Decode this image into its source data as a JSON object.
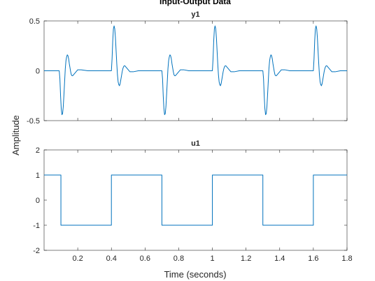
{
  "chart_data": {
    "type": "line",
    "title": "Input-Output Data",
    "xlabel": "Time (seconds)",
    "ylabel": "Amplitude",
    "line_color": "#0072BD",
    "axis_color": "#262626",
    "grid": false,
    "xlim": [
      0,
      1.8
    ],
    "xticks": [
      0.2,
      0.4,
      0.6,
      0.8,
      1,
      1.2,
      1.4,
      1.6,
      1.8
    ],
    "xtick_labels": [
      "0.2",
      "0.4",
      "0.6",
      "0.8",
      "1",
      "1.2",
      "1.4",
      "1.6",
      "1.8"
    ],
    "panels": [
      {
        "name": "y1",
        "title": "y1",
        "ylim": [
          -0.5,
          0.5
        ],
        "yticks": [
          -0.5,
          0,
          0.5
        ],
        "ytick_labels": [
          "-0.5",
          "0",
          "0.5"
        ],
        "series": [
          {
            "values_description_note": "",
            "x": [
              0.0,
              0.09,
              0.094,
              0.098,
              0.102,
              0.106,
              0.11,
              0.114,
              0.118,
              0.122,
              0.126,
              0.13,
              0.134,
              0.138,
              0.142,
              0.146,
              0.15,
              0.154,
              0.158,
              0.162,
              0.166,
              0.17,
              0.175,
              0.18,
              0.19,
              0.2,
              0.22,
              0.26,
              0.3,
              0.35,
              0.398,
              0.4,
              0.404,
              0.408,
              0.412,
              0.416,
              0.42,
              0.424,
              0.428,
              0.432,
              0.436,
              0.44,
              0.444,
              0.448,
              0.452,
              0.456,
              0.46,
              0.464,
              0.468,
              0.472,
              0.476,
              0.48,
              0.485,
              0.49,
              0.5,
              0.51,
              0.53,
              0.56,
              0.6,
              0.65,
              0.698,
              0.7,
              0.704,
              0.708,
              0.712,
              0.716,
              0.72,
              0.724,
              0.728,
              0.732,
              0.736,
              0.74,
              0.744,
              0.748,
              0.752,
              0.756,
              0.76,
              0.764,
              0.768,
              0.772,
              0.776,
              0.78,
              0.785,
              0.79,
              0.8,
              0.81,
              0.83,
              0.86,
              0.9,
              0.95,
              0.998,
              1.0,
              1.004,
              1.008,
              1.012,
              1.016,
              1.02,
              1.024,
              1.028,
              1.032,
              1.036,
              1.04,
              1.044,
              1.048,
              1.052,
              1.056,
              1.06,
              1.064,
              1.068,
              1.072,
              1.076,
              1.08,
              1.085,
              1.09,
              1.1,
              1.11,
              1.13,
              1.16,
              1.2,
              1.25,
              1.298,
              1.3,
              1.304,
              1.308,
              1.312,
              1.316,
              1.32,
              1.324,
              1.328,
              1.332,
              1.336,
              1.34,
              1.344,
              1.348,
              1.352,
              1.356,
              1.36,
              1.364,
              1.368,
              1.372,
              1.376,
              1.38,
              1.385,
              1.39,
              1.4,
              1.41,
              1.43,
              1.46,
              1.5,
              1.55,
              1.598,
              1.6,
              1.604,
              1.608,
              1.612,
              1.616,
              1.62,
              1.624,
              1.628,
              1.632,
              1.636,
              1.64,
              1.644,
              1.648,
              1.652,
              1.656,
              1.66,
              1.664,
              1.668,
              1.672,
              1.676,
              1.68,
              1.685,
              1.69,
              1.7,
              1.71,
              1.73,
              1.76,
              1.8
            ],
            "values": [
              0.0,
              0.0,
              -0.08,
              -0.25,
              -0.38,
              -0.44,
              -0.43,
              -0.36,
              -0.24,
              -0.11,
              0.02,
              0.1,
              0.14,
              0.16,
              0.15,
              0.12,
              0.07,
              0.03,
              -0.01,
              -0.04,
              -0.05,
              -0.05,
              -0.04,
              -0.03,
              -0.01,
              0.01,
              0.01,
              0.0,
              0.0,
              0.0,
              0.0,
              0.0,
              0.12,
              0.3,
              0.42,
              0.45,
              0.42,
              0.33,
              0.2,
              0.07,
              -0.04,
              -0.11,
              -0.14,
              -0.15,
              -0.13,
              -0.09,
              -0.05,
              -0.01,
              0.02,
              0.04,
              0.05,
              0.05,
              0.04,
              0.03,
              0.01,
              -0.01,
              -0.01,
              0.0,
              0.0,
              0.0,
              0.0,
              0.0,
              -0.08,
              -0.25,
              -0.38,
              -0.44,
              -0.43,
              -0.36,
              -0.24,
              -0.11,
              0.02,
              0.1,
              0.14,
              0.16,
              0.15,
              0.12,
              0.07,
              0.03,
              -0.01,
              -0.04,
              -0.05,
              -0.05,
              -0.04,
              -0.03,
              -0.01,
              0.01,
              0.01,
              0.0,
              0.0,
              0.0,
              0.0,
              0.0,
              0.12,
              0.3,
              0.42,
              0.45,
              0.42,
              0.33,
              0.2,
              0.07,
              -0.04,
              -0.11,
              -0.14,
              -0.15,
              -0.13,
              -0.09,
              -0.05,
              -0.01,
              0.02,
              0.04,
              0.05,
              0.05,
              0.04,
              0.03,
              0.01,
              -0.01,
              -0.01,
              0.0,
              0.0,
              0.0,
              0.0,
              0.0,
              -0.08,
              -0.25,
              -0.38,
              -0.44,
              -0.43,
              -0.36,
              -0.24,
              -0.11,
              0.02,
              0.1,
              0.14,
              0.16,
              0.15,
              0.12,
              0.07,
              0.03,
              -0.01,
              -0.04,
              -0.05,
              -0.05,
              -0.04,
              -0.03,
              -0.01,
              0.01,
              0.01,
              0.0,
              0.0,
              0.0,
              0.0,
              0.0,
              0.12,
              0.3,
              0.42,
              0.45,
              0.42,
              0.33,
              0.2,
              0.07,
              -0.04,
              -0.11,
              -0.14,
              -0.15,
              -0.13,
              -0.09,
              -0.05,
              -0.01,
              0.02,
              0.04,
              0.05,
              0.05,
              0.04,
              0.03,
              0.01,
              -0.01,
              -0.01,
              0.0,
              0.0
            ]
          }
        ]
      },
      {
        "name": "u1",
        "title": "u1",
        "ylim": [
          -2,
          2
        ],
        "yticks": [
          -2,
          -1,
          0,
          1,
          2
        ],
        "ytick_labels": [
          "-2",
          "-1",
          "0",
          "1",
          "2"
        ],
        "series": [
          {
            "x": [
              0.0,
              0.1,
              0.1,
              0.4,
              0.4,
              0.7,
              0.7,
              1.0,
              1.0,
              1.3,
              1.3,
              1.6,
              1.6,
              1.8
            ],
            "values": [
              1,
              1,
              -1,
              -1,
              1,
              1,
              -1,
              -1,
              1,
              1,
              -1,
              -1,
              1,
              1
            ]
          }
        ]
      }
    ]
  }
}
